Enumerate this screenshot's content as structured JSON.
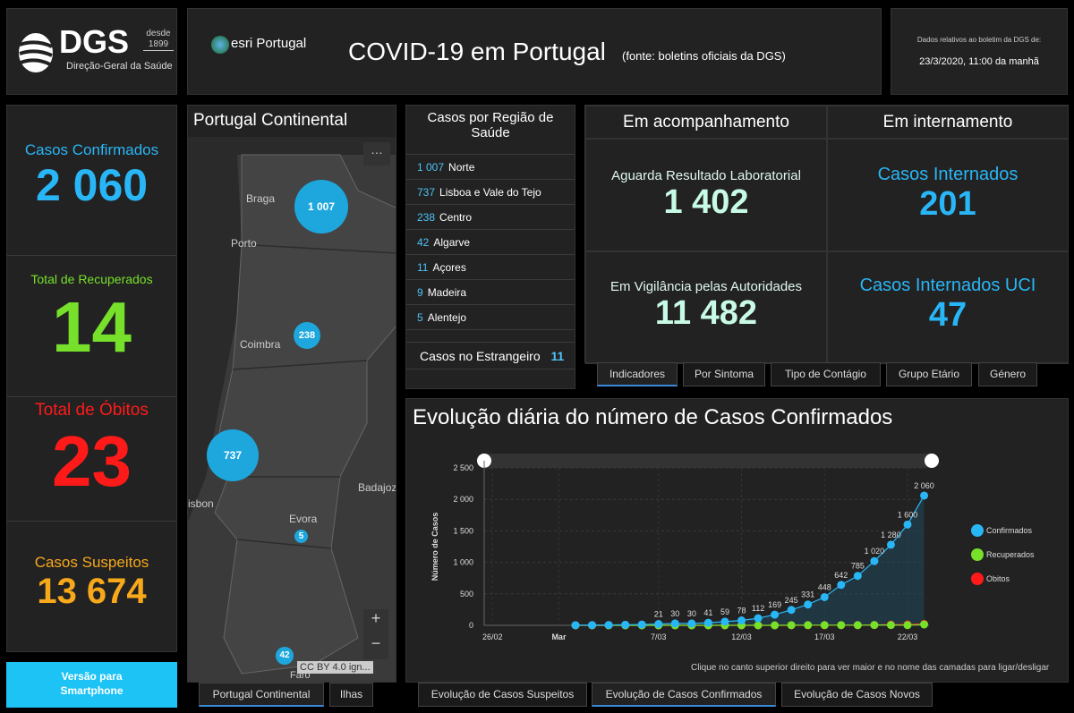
{
  "header": {
    "dgs_logo": "DGS",
    "dgs_since": "desde 1899",
    "dgs_sub": "Direção-Geral da Saúde",
    "esri_logo": "esri Portugal",
    "title": "COVID-19 em Portugal",
    "source": "(fonte: boletins oficiais da DGS)",
    "date_label": "Dados relativos ao boletim da DGS de:",
    "date_value": "23/3/2020, 11:00 da manhã"
  },
  "stats": [
    {
      "label": "Casos Confirmados",
      "value": "2 060",
      "color": "#29b6f6"
    },
    {
      "label": "Total de Recuperados",
      "value": "14",
      "color": "#76e02a"
    },
    {
      "label": "Total de Óbitos",
      "value": "23",
      "color": "#ff1a1a"
    },
    {
      "label": "Casos Suspeitos",
      "value": "13 674",
      "color": "#f7a81b"
    }
  ],
  "smartphone_button": "Versão para Smartphone",
  "map": {
    "title": "Portugal Continental",
    "more": "…",
    "cities": [
      "Braga",
      "Porto",
      "Coimbra",
      "Evora",
      "Badajoz",
      "isbon",
      "Faro"
    ],
    "clusters": [
      "1 007",
      "238",
      "737",
      "5",
      "42"
    ],
    "zoom_in": "+",
    "zoom_out": "−",
    "attribution": "CC BY 4.0 ign...",
    "tabs": [
      "Portugal Continental",
      "Ilhas"
    ]
  },
  "regions": {
    "title": "Casos por Região de Saúde",
    "items": [
      {
        "n": "1 007",
        "name": "Norte"
      },
      {
        "n": "737",
        "name": "Lisboa e Vale do Tejo"
      },
      {
        "n": "238",
        "name": "Centro"
      },
      {
        "n": "42",
        "name": "Algarve"
      },
      {
        "n": "11",
        "name": "Açores"
      },
      {
        "n": "9",
        "name": "Madeira"
      },
      {
        "n": "5",
        "name": "Alentejo"
      }
    ],
    "abroad_label": "Casos no Estrangeiro",
    "abroad_value": "11"
  },
  "indicators": {
    "col1": "Em acompanhamento",
    "col2": "Em internamento",
    "a_label": "Aguarda Resultado Laboratorial",
    "a_value": "1 402",
    "b_label": "Em Vigilância pelas Autoridades",
    "b_value": "11 482",
    "c_label": "Casos Internados",
    "c_value": "201",
    "d_label": "Casos Internados UCI",
    "d_value": "47",
    "tabs": [
      "Indicadores",
      "Por Sintoma",
      "Tipo de Contágio",
      "Grupo Etário",
      "Género"
    ]
  },
  "chart_tabs": [
    "Evolução de Casos Suspeitos",
    "Evolução de Casos Confirmados",
    "Evolução de Casos Novos"
  ],
  "chart_data": {
    "type": "line",
    "title": "Evolução diária do número de Casos Confirmados",
    "ylabel": "Número de Casos",
    "ylim": [
      0,
      2500
    ],
    "yticks": [
      "0",
      "500",
      "1 000",
      "1 500",
      "2 000",
      "2 500"
    ],
    "xticks": [
      "26/02",
      "Mar",
      "7/03",
      "12/03",
      "17/03",
      "22/03"
    ],
    "x": [
      "2/03",
      "3/03",
      "4/03",
      "5/03",
      "6/03",
      "7/03",
      "8/03",
      "9/03",
      "10/03",
      "11/03",
      "12/03",
      "13/03",
      "14/03",
      "15/03",
      "16/03",
      "17/03",
      "18/03",
      "19/03",
      "20/03",
      "21/03",
      "22/03",
      "23/03"
    ],
    "legend_position": "right",
    "series": [
      {
        "name": "Confirmados",
        "color": "#29b6f6",
        "values": [
          2,
          4,
          6,
          9,
          13,
          21,
          30,
          30,
          41,
          59,
          78,
          112,
          169,
          245,
          331,
          448,
          642,
          785,
          1020,
          1280,
          1600,
          2060
        ],
        "labels": true
      },
      {
        "name": "Recuperados",
        "color": "#76e02a",
        "values": [
          0,
          0,
          0,
          0,
          0,
          0,
          0,
          0,
          0,
          0,
          0,
          0,
          0,
          2,
          3,
          3,
          3,
          3,
          5,
          5,
          3,
          14
        ]
      },
      {
        "name": "Obitos",
        "color": "#ff1a1a",
        "values": [
          0,
          0,
          0,
          0,
          0,
          0,
          0,
          0,
          0,
          0,
          0,
          0,
          0,
          0,
          1,
          1,
          2,
          3,
          6,
          12,
          14,
          23
        ]
      }
    ],
    "note": "Clique no canto superior direito para ver maior e no nome das camadas para ligar/desligar"
  }
}
